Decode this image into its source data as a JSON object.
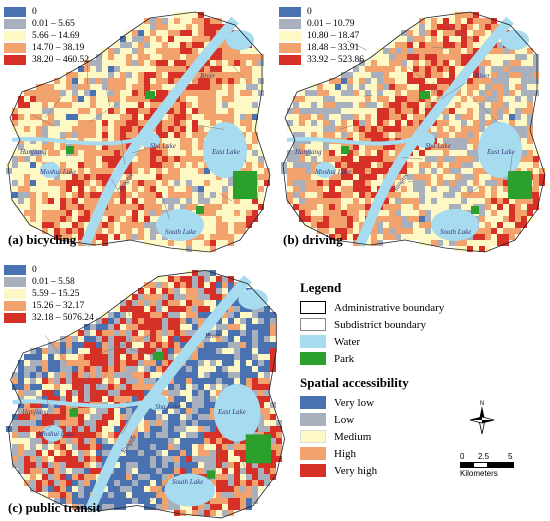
{
  "panels": [
    {
      "label": "(a) bicycling",
      "legend": [
        "0",
        "0.01 – 5.65",
        "5.66 – 14.69",
        "14.70 – 38.19",
        "38.20 – 460.52"
      ],
      "places": [
        "River",
        "Yangtze",
        "Hanjiang",
        "Sha Lake",
        "East Lake",
        "South Lake",
        "Moshui Lake"
      ]
    },
    {
      "label": "(b) driving",
      "legend": [
        "0",
        "0.01 – 10.79",
        "10.80 – 18.47",
        "18.48 – 33.91",
        "33.92 – 523.86"
      ],
      "places": [
        "River",
        "Yangtze",
        "Hanjiang",
        "Sha Lake",
        "East Lake",
        "South Lake",
        "Moshui Lake"
      ]
    },
    {
      "label": "(c) public transit",
      "legend": [
        "0",
        "0.01 – 5.58",
        "5.59 – 15.25",
        "15.26 – 32.17",
        "32.18 – 5076.24"
      ],
      "places": [
        "River",
        "Yangtze",
        "Hanjiang",
        "Sha Lake",
        "East Lake",
        "South Lake",
        "Moshui Lake"
      ]
    }
  ],
  "class_colors": [
    "#4a72b0",
    "#a7b0bc",
    "#fdf8c4",
    "#f2a26c",
    "#d73027"
  ],
  "legend": {
    "title": "Legend",
    "items": [
      {
        "label": "Administrative boundary",
        "kind": "admin"
      },
      {
        "label": "Subdistrict boundary",
        "kind": "subdistrict"
      },
      {
        "label": "Water",
        "kind": "water",
        "color": "#a6dbf0"
      },
      {
        "label": "Park",
        "kind": "park",
        "color": "#2ca02c"
      }
    ],
    "accessibility_title": "Spatial accessibility",
    "accessibility": [
      "Very low",
      "Low",
      "Medium",
      "High",
      "Very high"
    ]
  },
  "north_label": "N",
  "scale": {
    "ticks": [
      "0",
      "2.5",
      "5"
    ],
    "unit": "Kilometers"
  }
}
